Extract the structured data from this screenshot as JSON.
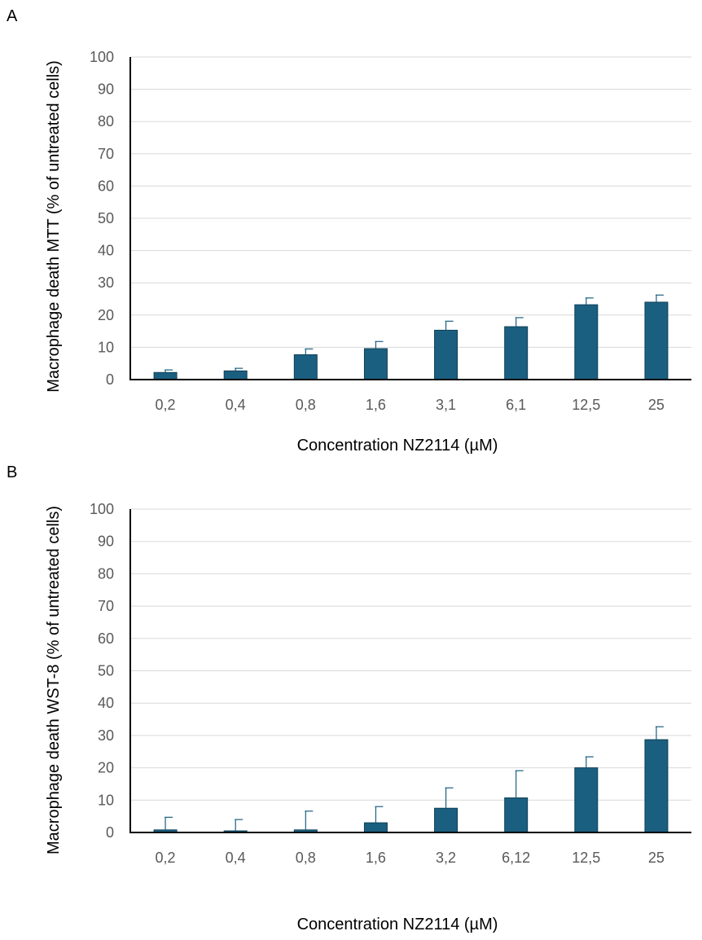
{
  "chart_data": [
    {
      "panel": "A",
      "type": "bar",
      "categories": [
        "0,2",
        "0,4",
        "0,8",
        "1,6",
        "3,1",
        "6,1",
        "12,5",
        "25"
      ],
      "values": [
        2.2,
        2.7,
        7.7,
        9.6,
        15.3,
        16.4,
        23.2,
        24.0
      ],
      "errors": [
        0.8,
        0.8,
        1.8,
        2.2,
        2.8,
        2.8,
        2.1,
        2.2
      ],
      "xlabel": "Concentration NZ2114 (µM)",
      "ylabel": "Macrophage death MTT (% of untreated cells)",
      "ylim": [
        0,
        100
      ],
      "yticks": [
        0,
        10,
        20,
        30,
        40,
        50,
        60,
        70,
        80,
        90,
        100
      ],
      "grid": true,
      "color": "#1b5f80"
    },
    {
      "panel": "B",
      "type": "bar",
      "categories": [
        "0,2",
        "0,4",
        "0,8",
        "1,6",
        "3,2",
        "6,12",
        "12,5",
        "25"
      ],
      "values": [
        0.8,
        0.5,
        0.8,
        3.0,
        7.5,
        10.7,
        20.0,
        28.7
      ],
      "errors": [
        3.9,
        3.5,
        5.8,
        5.0,
        6.3,
        8.4,
        3.4,
        4.0
      ],
      "xlabel": "Concentration NZ2114 (µM)",
      "ylabel": "Macrophage death WST-8 (% of untreated cells)",
      "ylim": [
        0,
        100
      ],
      "yticks": [
        0,
        10,
        20,
        30,
        40,
        50,
        60,
        70,
        80,
        90,
        100
      ],
      "grid": true,
      "color": "#1b5f80"
    }
  ]
}
